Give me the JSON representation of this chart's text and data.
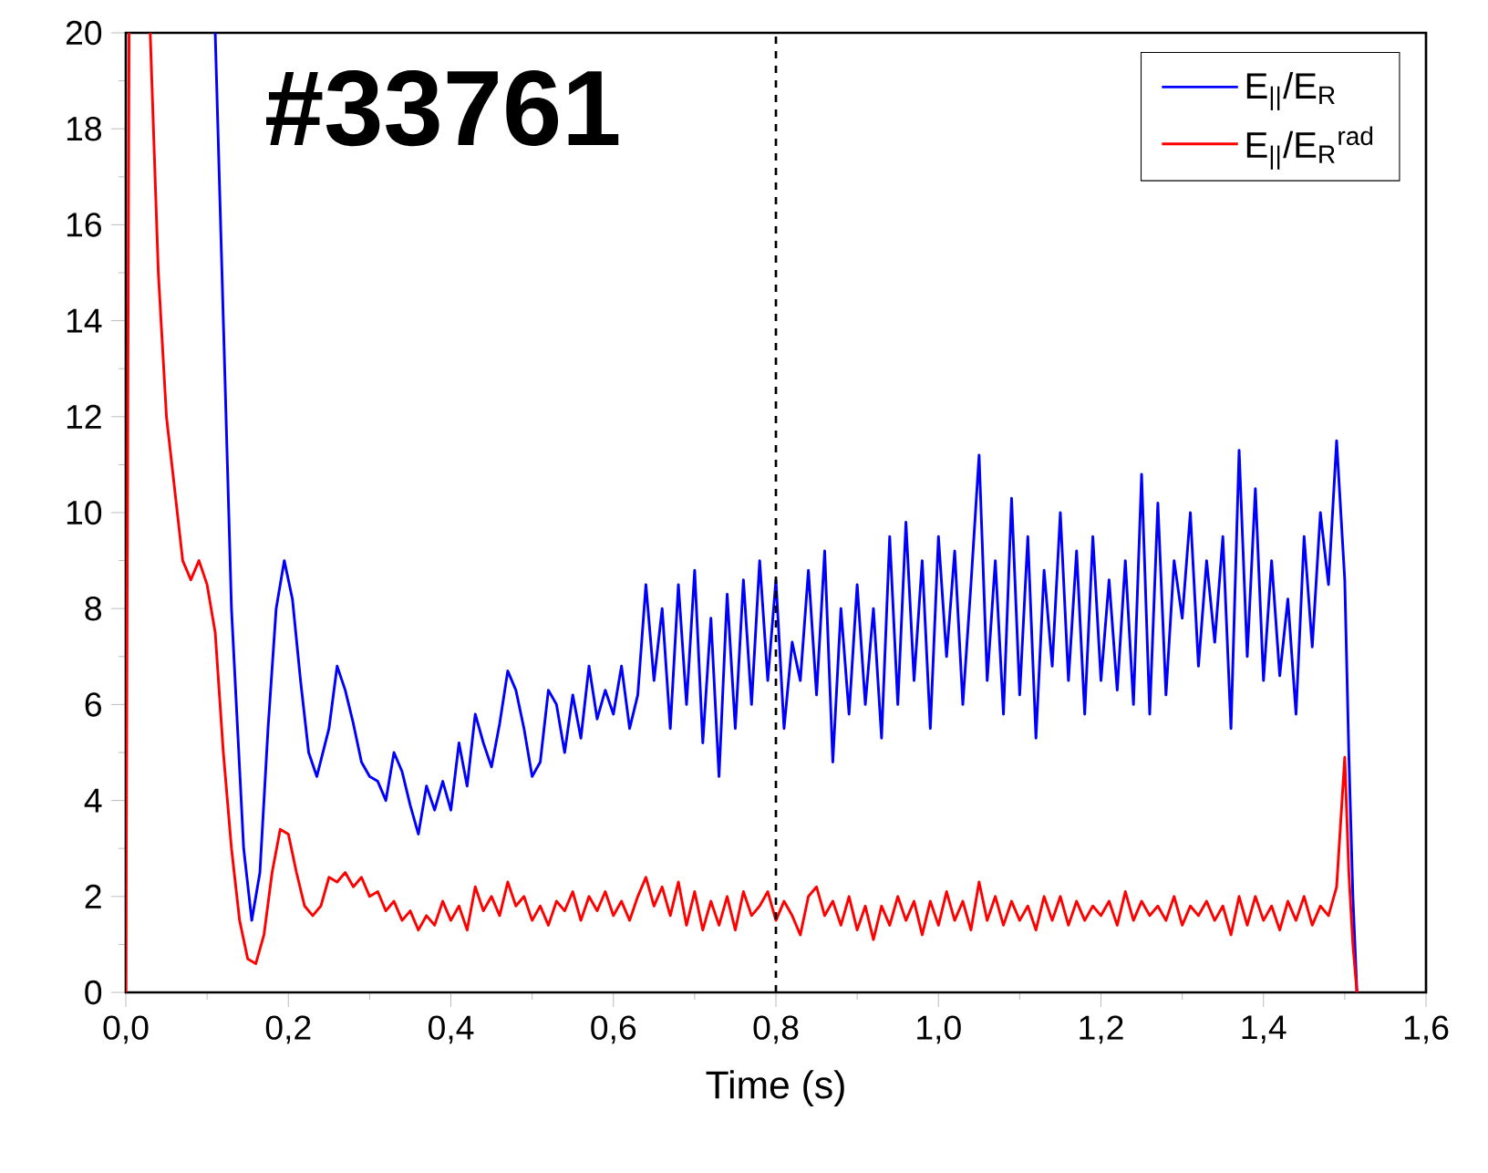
{
  "chart_data": {
    "type": "line",
    "xlabel": "Time (s)",
    "annotations": [
      "#33761"
    ],
    "xlim": [
      0,
      1.6
    ],
    "ylim": [
      0,
      20
    ],
    "xticks": [
      {
        "value": 0,
        "label": "0,0"
      },
      {
        "value": 0.2,
        "label": "0,2"
      },
      {
        "value": 0.4,
        "label": "0,4"
      },
      {
        "value": 0.6,
        "label": "0,6"
      },
      {
        "value": 0.8,
        "label": "0,8"
      },
      {
        "value": 1.0,
        "label": "1,0"
      },
      {
        "value": 1.2,
        "label": "1,2"
      },
      {
        "value": 1.4,
        "label": "1,4"
      },
      {
        "value": 1.6,
        "label": "1,6"
      }
    ],
    "yticks": [
      0,
      2,
      4,
      6,
      8,
      10,
      12,
      14,
      16,
      18,
      20
    ],
    "grid": false,
    "legend": "top right",
    "line_style": "solid",
    "marker": "none",
    "ref_lines": [
      {
        "axis": "x",
        "value": 0.8,
        "color": "#000000",
        "line_style": "dashed"
      }
    ],
    "series": [
      {
        "name": "E$_{||}$/E$_{R}$",
        "color": "#0000ff",
        "x": [
          0.11,
          0.12,
          0.13,
          0.145,
          0.155,
          0.165,
          0.175,
          0.185,
          0.195,
          0.205,
          0.215,
          0.225,
          0.235,
          0.25,
          0.26,
          0.27,
          0.28,
          0.29,
          0.3,
          0.31,
          0.32,
          0.33,
          0.34,
          0.35,
          0.36,
          0.37,
          0.38,
          0.39,
          0.4,
          0.41,
          0.42,
          0.43,
          0.44,
          0.45,
          0.46,
          0.47,
          0.48,
          0.49,
          0.5,
          0.51,
          0.52,
          0.53,
          0.54,
          0.55,
          0.56,
          0.57,
          0.58,
          0.59,
          0.6,
          0.61,
          0.62,
          0.63,
          0.64,
          0.65,
          0.66,
          0.67,
          0.68,
          0.69,
          0.7,
          0.71,
          0.72,
          0.73,
          0.74,
          0.75,
          0.76,
          0.77,
          0.78,
          0.79,
          0.8,
          0.81,
          0.82,
          0.83,
          0.84,
          0.85,
          0.86,
          0.87,
          0.88,
          0.89,
          0.9,
          0.91,
          0.92,
          0.93,
          0.94,
          0.95,
          0.96,
          0.97,
          0.98,
          0.99,
          1.0,
          1.01,
          1.02,
          1.03,
          1.04,
          1.05,
          1.06,
          1.07,
          1.08,
          1.09,
          1.1,
          1.11,
          1.12,
          1.13,
          1.14,
          1.15,
          1.16,
          1.17,
          1.18,
          1.19,
          1.2,
          1.21,
          1.22,
          1.23,
          1.24,
          1.25,
          1.26,
          1.27,
          1.28,
          1.29,
          1.3,
          1.31,
          1.32,
          1.33,
          1.34,
          1.35,
          1.36,
          1.37,
          1.38,
          1.39,
          1.4,
          1.41,
          1.42,
          1.43,
          1.44,
          1.45,
          1.46,
          1.47,
          1.48,
          1.49,
          1.5,
          1.505,
          1.51,
          1.515
        ],
        "values": [
          20,
          14,
          8,
          3,
          1.5,
          2.5,
          5.5,
          8,
          9,
          8.2,
          6.5,
          5,
          4.5,
          5.5,
          6.8,
          6.3,
          5.6,
          4.8,
          4.5,
          4.4,
          4.0,
          5.0,
          4.6,
          3.9,
          3.3,
          4.3,
          3.8,
          4.4,
          3.8,
          5.2,
          4.3,
          5.8,
          5.2,
          4.7,
          5.6,
          6.7,
          6.3,
          5.5,
          4.5,
          4.8,
          6.3,
          6.0,
          5.0,
          6.2,
          5.3,
          6.8,
          5.7,
          6.3,
          5.8,
          6.8,
          5.5,
          6.2,
          8.5,
          6.5,
          8.0,
          5.5,
          8.5,
          6.0,
          8.8,
          5.2,
          7.8,
          4.5,
          8.3,
          5.5,
          8.6,
          6.0,
          9.0,
          6.5,
          8.6,
          5.5,
          7.3,
          6.5,
          8.8,
          6.2,
          9.2,
          4.8,
          8.0,
          5.8,
          8.5,
          6.0,
          8.0,
          5.3,
          9.5,
          6.0,
          9.8,
          6.5,
          9.0,
          5.5,
          9.5,
          7.0,
          9.2,
          6.0,
          8.5,
          11.2,
          6.5,
          9.0,
          5.8,
          10.3,
          6.2,
          9.5,
          5.3,
          8.8,
          6.8,
          10.0,
          6.5,
          9.2,
          5.8,
          9.5,
          6.5,
          8.6,
          6.3,
          9.0,
          6.0,
          10.8,
          5.8,
          10.2,
          6.2,
          9.0,
          7.8,
          10.0,
          6.8,
          9.0,
          7.3,
          9.5,
          5.5,
          11.3,
          7.0,
          10.5,
          6.5,
          9.0,
          6.6,
          8.2,
          5.8,
          9.5,
          7.2,
          10.0,
          8.5,
          11.5,
          8.6,
          5.0,
          2.0,
          0
        ]
      },
      {
        "name": "E$_{||}$/E$_{R}$$^{rad}$",
        "color": "#ff0000",
        "x": [
          0,
          0.004,
          0.01,
          0.03,
          0.04,
          0.05,
          0.06,
          0.07,
          0.08,
          0.09,
          0.1,
          0.11,
          0.12,
          0.13,
          0.14,
          0.15,
          0.16,
          0.17,
          0.18,
          0.19,
          0.2,
          0.21,
          0.22,
          0.23,
          0.24,
          0.25,
          0.26,
          0.27,
          0.28,
          0.29,
          0.3,
          0.31,
          0.32,
          0.33,
          0.34,
          0.35,
          0.36,
          0.37,
          0.38,
          0.39,
          0.4,
          0.41,
          0.42,
          0.43,
          0.44,
          0.45,
          0.46,
          0.47,
          0.48,
          0.49,
          0.5,
          0.51,
          0.52,
          0.53,
          0.54,
          0.55,
          0.56,
          0.57,
          0.58,
          0.59,
          0.6,
          0.61,
          0.62,
          0.63,
          0.64,
          0.65,
          0.66,
          0.67,
          0.68,
          0.69,
          0.7,
          0.71,
          0.72,
          0.73,
          0.74,
          0.75,
          0.76,
          0.77,
          0.78,
          0.79,
          0.8,
          0.81,
          0.82,
          0.83,
          0.84,
          0.85,
          0.86,
          0.87,
          0.88,
          0.89,
          0.9,
          0.91,
          0.92,
          0.93,
          0.94,
          0.95,
          0.96,
          0.97,
          0.98,
          0.99,
          1.0,
          1.01,
          1.02,
          1.03,
          1.04,
          1.05,
          1.06,
          1.07,
          1.08,
          1.09,
          1.1,
          1.11,
          1.12,
          1.13,
          1.14,
          1.15,
          1.16,
          1.17,
          1.18,
          1.19,
          1.2,
          1.21,
          1.22,
          1.23,
          1.24,
          1.25,
          1.26,
          1.27,
          1.28,
          1.29,
          1.3,
          1.31,
          1.32,
          1.33,
          1.34,
          1.35,
          1.36,
          1.37,
          1.38,
          1.39,
          1.4,
          1.41,
          1.42,
          1.43,
          1.44,
          1.45,
          1.46,
          1.47,
          1.48,
          1.49,
          1.5,
          1.505,
          1.51,
          1.515
        ],
        "values": [
          0,
          20,
          null,
          20,
          15,
          12,
          10.5,
          9.0,
          8.6,
          9.0,
          8.5,
          7.5,
          5.0,
          3.0,
          1.5,
          0.7,
          0.6,
          1.2,
          2.5,
          3.4,
          3.3,
          2.5,
          1.8,
          1.6,
          1.8,
          2.4,
          2.3,
          2.5,
          2.2,
          2.4,
          2.0,
          2.1,
          1.7,
          1.9,
          1.5,
          1.7,
          1.3,
          1.6,
          1.4,
          1.9,
          1.5,
          1.8,
          1.3,
          2.2,
          1.7,
          2.0,
          1.6,
          2.3,
          1.8,
          2.0,
          1.5,
          1.8,
          1.4,
          1.9,
          1.7,
          2.1,
          1.5,
          2.0,
          1.7,
          2.1,
          1.6,
          1.9,
          1.5,
          2.0,
          2.4,
          1.8,
          2.2,
          1.6,
          2.3,
          1.4,
          2.1,
          1.3,
          1.9,
          1.4,
          2.0,
          1.3,
          2.1,
          1.6,
          1.8,
          2.1,
          1.5,
          1.9,
          1.6,
          1.2,
          2.0,
          2.2,
          1.6,
          1.9,
          1.4,
          2.0,
          1.3,
          1.8,
          1.1,
          1.8,
          1.4,
          2.0,
          1.5,
          1.9,
          1.2,
          1.9,
          1.4,
          2.1,
          1.5,
          1.9,
          1.3,
          2.3,
          1.5,
          2.0,
          1.4,
          1.9,
          1.5,
          1.8,
          1.3,
          2.0,
          1.5,
          2.0,
          1.4,
          1.9,
          1.5,
          1.8,
          1.6,
          1.9,
          1.4,
          2.1,
          1.5,
          1.9,
          1.6,
          1.8,
          1.5,
          2.0,
          1.4,
          1.8,
          1.6,
          1.9,
          1.5,
          1.8,
          1.2,
          2.0,
          1.4,
          2.0,
          1.5,
          1.8,
          1.3,
          1.9,
          1.5,
          2.0,
          1.4,
          1.8,
          1.6,
          2.2,
          4.9,
          2.5,
          1.0,
          0
        ]
      }
    ]
  }
}
